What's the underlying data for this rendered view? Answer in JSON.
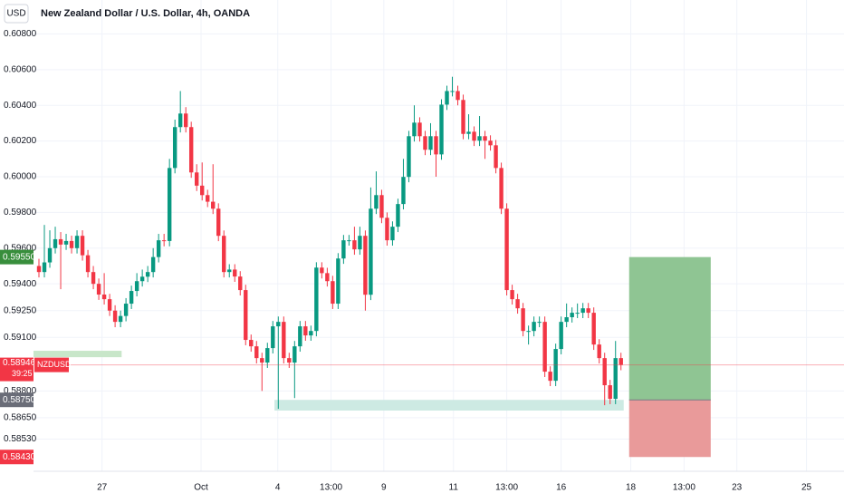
{
  "chart_data": {
    "type": "candlestick",
    "title": "New Zealand Dollar / U.S. Dollar, 4h, OANDA",
    "currency": "USD",
    "up_color": "#089981",
    "down_color": "#f23645",
    "open": [
      0.595,
      0.59466,
      0.5952,
      0.596,
      0.5965,
      0.5962,
      0.5964,
      0.596,
      0.59669,
      0.5956,
      0.59466,
      0.594,
      0.5934,
      0.59314,
      0.5925,
      0.59187,
      0.5922,
      0.59289,
      0.5936,
      0.59415,
      0.5944,
      0.59466,
      0.5955,
      0.59644,
      0.5964,
      0.60049,
      0.60278,
      0.60354,
      0.60278,
      0.60024,
      0.5995,
      0.59897,
      0.5986,
      0.59821,
      0.59669,
      0.59466,
      0.5948,
      0.59441,
      0.59365,
      0.59086,
      0.5905,
      0.58984,
      0.58959,
      0.5904,
      0.59162,
      0.59187,
      0.58984,
      0.58959,
      0.5905,
      0.59162,
      0.59111,
      0.59136,
      0.59491,
      0.5946,
      0.59415,
      0.59289,
      0.59542,
      0.59644,
      0.59644,
      0.59593,
      0.59669,
      0.59339,
      0.59821,
      0.59897,
      0.5977,
      0.59644,
      0.5972,
      0.59847,
      0.59999,
      0.60227,
      0.60303,
      0.60227,
      0.60151,
      0.60227,
      0.60125,
      0.60404,
      0.6048,
      0.6048,
      0.6043,
      0.6024,
      0.60252,
      0.60202,
      0.60227,
      0.60202,
      0.60176,
      0.60049,
      0.59821,
      0.59365,
      0.59314,
      0.59263,
      0.59136,
      0.59136,
      0.59187,
      0.59187,
      0.58908,
      0.58857,
      0.59035,
      0.59187,
      0.59213,
      0.59238,
      0.59238,
      0.59263,
      0.59238,
      0.5906,
      0.58984,
      0.58832,
      0.58756,
      0.58984
    ],
    "high": [
      0.5954,
      0.5973,
      0.597,
      0.5972,
      0.5969,
      0.5968,
      0.5967,
      0.597,
      0.597,
      0.5959,
      0.595,
      0.5943,
      0.5946,
      0.59344,
      0.5928,
      0.5925,
      0.5932,
      0.5939,
      0.5946,
      0.5948,
      0.595,
      0.596,
      0.5968,
      0.5968,
      0.601,
      0.6032,
      0.6048,
      0.6039,
      0.60308,
      0.6007,
      0.6008,
      0.59927,
      0.6007,
      0.59851,
      0.59699,
      0.5951,
      0.5951,
      0.59471,
      0.59395,
      0.59116,
      0.5908,
      0.59014,
      0.5907,
      0.59192,
      0.59217,
      0.59217,
      0.59014,
      0.5908,
      0.59192,
      0.59192,
      0.59166,
      0.59521,
      0.59521,
      0.5949,
      0.59445,
      0.59572,
      0.59674,
      0.59674,
      0.5972,
      0.5972,
      0.59699,
      0.5994,
      0.6003,
      0.59927,
      0.598,
      0.5975,
      0.59877,
      0.601,
      0.60257,
      0.604,
      0.60333,
      0.60257,
      0.603,
      0.60257,
      0.60434,
      0.6051,
      0.6056,
      0.6051,
      0.6046,
      0.6035,
      0.60282,
      0.6034,
      0.60257,
      0.60232,
      0.60206,
      0.60079,
      0.59851,
      0.59395,
      0.59344,
      0.59293,
      0.59166,
      0.59217,
      0.59217,
      0.59217,
      0.58938,
      0.59065,
      0.59217,
      0.5929,
      0.59268,
      0.5929,
      0.59293,
      0.59293,
      0.59268,
      0.5909,
      0.59014,
      0.58862,
      0.5908,
      0.59014
    ],
    "low": [
      0.59436,
      0.59436,
      0.5949,
      0.5957,
      0.5937,
      0.5959,
      0.5957,
      0.5957,
      0.5953,
      0.59436,
      0.5937,
      0.5931,
      0.59284,
      0.5922,
      0.59157,
      0.59157,
      0.5919,
      0.59259,
      0.5933,
      0.59385,
      0.5941,
      0.59436,
      0.5952,
      0.5961,
      0.5961,
      0.60019,
      0.60248,
      0.60248,
      0.59994,
      0.5992,
      0.59867,
      0.5983,
      0.59791,
      0.59639,
      0.59436,
      0.59436,
      0.59411,
      0.59335,
      0.59056,
      0.5902,
      0.58954,
      0.588,
      0.58929,
      0.5901,
      0.587,
      0.58954,
      0.58929,
      0.5876,
      0.5902,
      0.59081,
      0.59081,
      0.59106,
      0.5943,
      0.59385,
      0.59259,
      0.59259,
      0.59512,
      0.59614,
      0.59563,
      0.59563,
      0.5925,
      0.59309,
      0.59791,
      0.5974,
      0.59614,
      0.59614,
      0.5969,
      0.59817,
      0.59969,
      0.60197,
      0.60197,
      0.60121,
      0.60121,
      0.6,
      0.60095,
      0.60374,
      0.6045,
      0.604,
      0.6021,
      0.6021,
      0.60172,
      0.60172,
      0.601,
      0.60146,
      0.60019,
      0.59791,
      0.59335,
      0.59284,
      0.59233,
      0.59106,
      0.5906,
      0.59106,
      0.59157,
      0.58878,
      0.58827,
      0.58827,
      0.59005,
      0.59157,
      0.59183,
      0.59208,
      0.59208,
      0.59208,
      0.5903,
      0.58954,
      0.5872,
      0.58726,
      0.58726,
      0.58916
    ],
    "close": [
      0.59466,
      0.5952,
      0.596,
      0.5965,
      0.5962,
      0.5964,
      0.596,
      0.59669,
      0.5956,
      0.59466,
      0.594,
      0.5934,
      0.59314,
      0.5925,
      0.59187,
      0.5922,
      0.59289,
      0.5936,
      0.59415,
      0.5944,
      0.59466,
      0.5955,
      0.59644,
      0.5964,
      0.60049,
      0.60278,
      0.60354,
      0.60278,
      0.60024,
      0.5995,
      0.59897,
      0.5986,
      0.59821,
      0.59669,
      0.59466,
      0.5948,
      0.59441,
      0.59365,
      0.59086,
      0.5905,
      0.58984,
      0.58959,
      0.5904,
      0.59162,
      0.59187,
      0.58984,
      0.58959,
      0.5905,
      0.59162,
      0.59111,
      0.59136,
      0.59491,
      0.5946,
      0.59415,
      0.59289,
      0.59542,
      0.59644,
      0.59644,
      0.59593,
      0.59669,
      0.59339,
      0.59821,
      0.59897,
      0.5977,
      0.59644,
      0.5972,
      0.59847,
      0.59999,
      0.60227,
      0.60303,
      0.60227,
      0.60151,
      0.60227,
      0.60125,
      0.60404,
      0.6048,
      0.6048,
      0.6043,
      0.6024,
      0.60252,
      0.60202,
      0.60227,
      0.60202,
      0.60176,
      0.60049,
      0.59821,
      0.59365,
      0.59314,
      0.59263,
      0.59136,
      0.59136,
      0.59187,
      0.59187,
      0.58908,
      0.58857,
      0.59035,
      0.59187,
      0.59213,
      0.59238,
      0.59238,
      0.59263,
      0.59238,
      0.5906,
      0.58984,
      0.58832,
      0.58756,
      0.58984,
      0.58946
    ],
    "xlim": [
      -1,
      148
    ],
    "ylim": [
      0.5835,
      0.6099
    ],
    "grid": true,
    "yticks": [
      {
        "value": 0.608,
        "label": "0.60800"
      },
      {
        "value": 0.606,
        "label": "0.60600"
      },
      {
        "value": 0.604,
        "label": "0.60400"
      },
      {
        "value": 0.602,
        "label": "0.60200"
      },
      {
        "value": 0.6,
        "label": "0.60000"
      },
      {
        "value": 0.598,
        "label": "0.59800"
      },
      {
        "value": 0.596,
        "label": "0.59600"
      },
      {
        "value": 0.594,
        "label": "0.59400"
      },
      {
        "value": 0.5925,
        "label": "0.59250"
      },
      {
        "value": 0.591,
        "label": "0.59100"
      },
      {
        "value": 0.588,
        "label": "0.58800"
      },
      {
        "value": 0.5865,
        "label": "0.58650"
      },
      {
        "value": 0.5853,
        "label": "0.58530"
      }
    ],
    "xticks": [
      {
        "value": 11.6,
        "label": "27"
      },
      {
        "value": 29.8,
        "label": "Oct"
      },
      {
        "value": 43.9,
        "label": "4"
      },
      {
        "value": 53.7,
        "label": "13:00"
      },
      {
        "value": 63.4,
        "label": "9"
      },
      {
        "value": 76.2,
        "label": "11"
      },
      {
        "value": 86,
        "label": "13:00"
      },
      {
        "value": 96,
        "label": "16"
      },
      {
        "value": 108.8,
        "label": "18"
      },
      {
        "value": 118.6,
        "label": "13:00"
      },
      {
        "value": 128.3,
        "label": "23"
      },
      {
        "value": 141.1,
        "label": "25"
      }
    ],
    "price_line": {
      "value": 0.58946,
      "symbol": "NZDUSD",
      "countdown": "39:25",
      "color": "#f23645"
    },
    "zones": [
      {
        "x": [
          -1,
          15.2
        ],
        "y": [
          0.58989,
          0.59025
        ],
        "color": "#c8e6c9"
      },
      {
        "x": [
          43.3,
          107.5
        ],
        "y": [
          0.5869,
          0.5875
        ],
        "color": "#cdeae3"
      }
    ],
    "position": {
      "x": [
        108.5,
        123.5
      ],
      "target": {
        "value": 0.5955,
        "label": "0.59550"
      },
      "entry": {
        "value": 0.5875,
        "label": "0.58750"
      },
      "stop": {
        "value": 0.5843,
        "label": "0.58430"
      },
      "profit_color": "#8fc593",
      "loss_color": "#e99a9a",
      "target_color": "#388e3c",
      "entry_color": "#6a6d78",
      "stop_color": "#f23645"
    }
  }
}
